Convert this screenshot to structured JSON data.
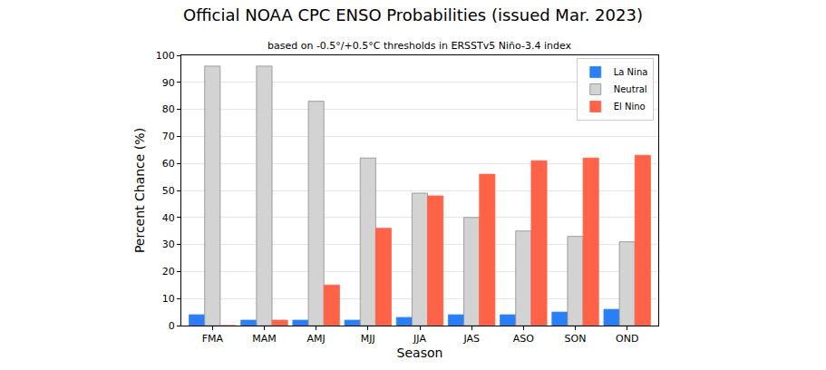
{
  "chart_data": {
    "type": "bar",
    "title": "Official NOAA CPC ENSO Probabilities (issued Mar. 2023)",
    "subtitle": "based on -0.5°/+0.5°C thresholds in ERSSTv5 Niño-3.4 index",
    "x_label": "Season",
    "y_label": "Percent Chance (%)",
    "categories": [
      "FMA",
      "MAM",
      "AMJ",
      "MJJ",
      "JJA",
      "JAS",
      "ASO",
      "SON",
      "OND"
    ],
    "series": [
      {
        "name": "La Nina",
        "color": "#2a7ff7",
        "values": [
          4,
          2,
          2,
          2,
          3,
          4,
          4,
          5,
          6
        ]
      },
      {
        "name": "Neutral",
        "color": "#d3d3d3",
        "values": [
          96,
          96,
          83,
          62,
          49,
          40,
          35,
          33,
          31
        ]
      },
      {
        "name": "El Nino",
        "color": "#ff6347",
        "values": [
          0,
          2,
          15,
          36,
          48,
          56,
          61,
          62,
          63
        ]
      }
    ],
    "ylim": [
      0,
      100
    ],
    "yticks": [
      0,
      10,
      20,
      30,
      40,
      50,
      60,
      70,
      80,
      90,
      100
    ],
    "grid": true,
    "legend": "upper right"
  }
}
